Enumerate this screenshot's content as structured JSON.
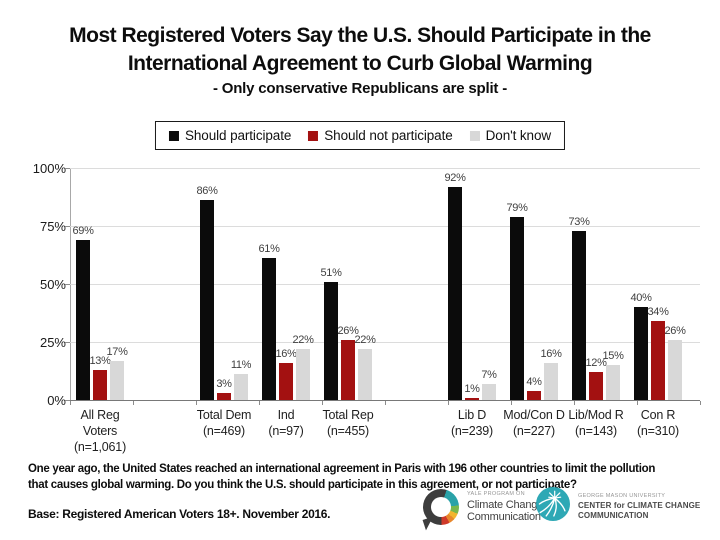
{
  "title": {
    "line1": "Most Registered Voters Say the U.S. Should Participate in the",
    "line2": "International Agreement to Curb Global Warming",
    "subtitle": "- Only conservative Republicans are split -"
  },
  "chart_data": {
    "type": "bar",
    "title": "Most Registered Voters Say the U.S. Should Participate in the International Agreement to Curb Global Warming",
    "subtitle": "- Only conservative Republicans are split -",
    "xlabel": "",
    "ylabel": "",
    "ylim": [
      0,
      100
    ],
    "grid": true,
    "legend_position": "top",
    "ytick_values": [
      0,
      25,
      50,
      75,
      100
    ],
    "ytick_labels": [
      "0%",
      "25%",
      "50%",
      "75%",
      "100%"
    ],
    "categories": [
      "All Reg Voters (n=1,061)",
      "Total Dem (n=469)",
      "Ind (n=97)",
      "Total Rep (n=455)",
      "Lib D (n=239)",
      "Mod/Con D (n=227)",
      "Lib/Mod R (n=143)",
      "Con R (n=310)"
    ],
    "category_label_lines": [
      [
        "All Reg",
        "Voters",
        "(n=1,061)"
      ],
      [
        "Total Dem",
        "(n=469)"
      ],
      [
        "Ind",
        "(n=97)"
      ],
      [
        "Total Rep",
        "(n=455)"
      ],
      [
        "Lib D",
        "(n=239)"
      ],
      [
        "Mod/Con D",
        "(n=227)"
      ],
      [
        "Lib/Mod R",
        "(n=143)"
      ],
      [
        "Con R",
        "(n=310)"
      ]
    ],
    "category_slots": [
      0,
      2,
      3,
      4,
      6,
      7,
      8,
      9
    ],
    "series": [
      {
        "name": "Should participate",
        "color": "#0b0b0b",
        "values": [
          69,
          86,
          61,
          51,
          92,
          79,
          73,
          40
        ]
      },
      {
        "name": "Should not participate",
        "color": "#A31111",
        "values": [
          13,
          3,
          16,
          26,
          1,
          4,
          12,
          34
        ]
      },
      {
        "name": "Don't know",
        "color": "#D8D8D8",
        "values": [
          17,
          11,
          22,
          22,
          7,
          16,
          15,
          26
        ]
      }
    ],
    "value_label_suffix": "%"
  },
  "footer": {
    "question_line1": "One year ago, the United States reached an international agreement in Paris with 196 other countries to limit the pollution",
    "question_line2": "that causes global warming. Do you think the U.S. should participate in this agreement, or not participate?",
    "base": "Base: Registered American Voters 18+. November 2016."
  },
  "logos": {
    "yale": {
      "program": "YALE PROGRAM ON",
      "line1": "Climate Change",
      "line2": "Communication"
    },
    "gmu": {
      "university": "GEORGE MASON UNIVERSITY",
      "line1": "CENTER for CLIMATE CHANGE",
      "line2": "COMMUNICATION"
    }
  },
  "colors": {
    "bar_black": "#0b0b0b",
    "bar_red": "#A31111",
    "bar_gray": "#D8D8D8",
    "gridline": "#dcdcdc",
    "gmu_teal": "#2EA8B5"
  }
}
